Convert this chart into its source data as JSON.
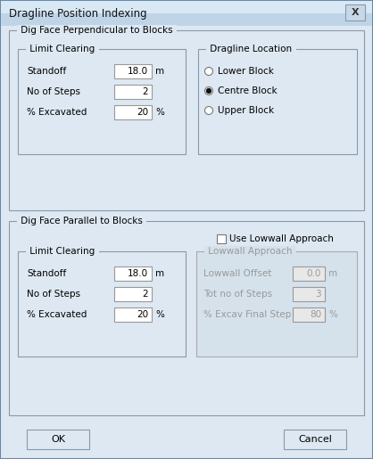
{
  "title": "Dragline Position Indexing",
  "bg_outer": "#c0d4e8",
  "bg_dialog": "#dde8f2",
  "bg_section": "#dde8f2",
  "titlebar_color": "#c8daea",
  "border_dark": "#6688aa",
  "border_light": "#aabbcc",
  "text_color": "#000000",
  "disabled_text_color": "#999999",
  "input_bg": "#ffffff",
  "input_bg_disabled": "#e8e8e8",
  "button_bg": "#dde8f2",
  "button_border": "#8899aa",
  "section1_title": "Dig Face Perpendicular to Blocks",
  "lc1_title": "Limit Clearing",
  "dl_title": "Dragline Location",
  "standoff_label": "Standoff",
  "standoff_value": "18.0",
  "standoff_unit": "m",
  "steps_label": "No of Steps",
  "steps_value": "2",
  "excav_label": "% Excavated",
  "excav_value": "20",
  "excav_unit": "%",
  "radio_lower": "Lower Block",
  "radio_centre": "Centre Block",
  "radio_upper": "Upper Block",
  "radio_selected": 1,
  "section2_title": "Dig Face Parallel to Blocks",
  "checkbox_label": "Use Lowwall Approach",
  "checkbox_checked": false,
  "lw_title": "Lowwall Approach",
  "lw_offset_label": "Lowwall Offset",
  "lw_offset_value": "0.0",
  "lw_offset_unit": "m",
  "lw_steps_label": "Tot no of Steps",
  "lw_steps_value": "3",
  "lw_excav_label": "% Excav Final Step",
  "lw_excav_value": "80",
  "lw_excav_unit": "%",
  "ok_label": "OK",
  "cancel_label": "Cancel",
  "figw": 4.18,
  "figh": 5.15,
  "dpi": 100
}
